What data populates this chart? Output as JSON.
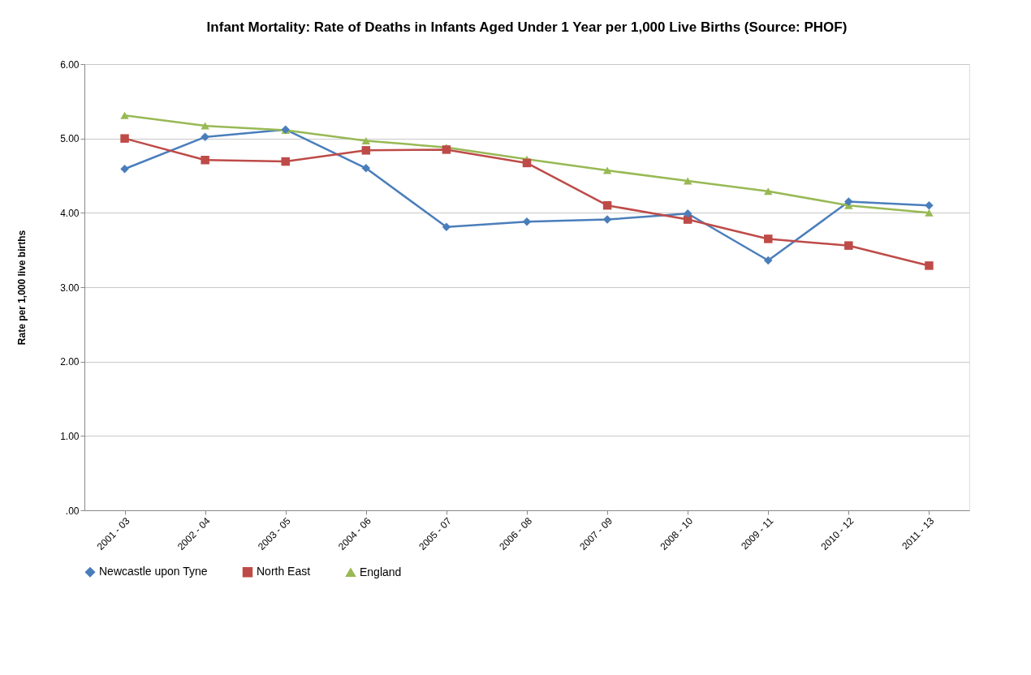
{
  "chart_data": {
    "type": "line",
    "title": "Infant Mortality: Rate of Deaths in Infants Aged Under 1 Year per 1,000 Live Births (Source: PHOF)",
    "ylabel": "Rate per 1,000 live births",
    "categories": [
      "2001 - 03",
      "2002 - 04",
      "2003 - 05",
      "2004 - 06",
      "2005 - 07",
      "2006 - 08",
      "2007 - 09",
      "2008 - 10",
      "2009 - 11",
      "2010 - 12",
      "2011 - 13"
    ],
    "series": [
      {
        "name": "Newcastle upon Tyne",
        "color": "#4a7ebb",
        "marker": "diamond",
        "values": [
          4.59,
          5.02,
          5.12,
          4.6,
          3.81,
          3.88,
          3.91,
          3.99,
          3.36,
          4.15,
          4.1
        ]
      },
      {
        "name": "North East",
        "color": "#be4b48",
        "marker": "square",
        "values": [
          5.0,
          4.71,
          4.69,
          4.84,
          4.85,
          4.67,
          4.1,
          3.91,
          3.65,
          3.56,
          3.29
        ]
      },
      {
        "name": "England",
        "color": "#98b954",
        "marker": "triangle",
        "values": [
          5.31,
          5.17,
          5.11,
          4.97,
          4.88,
          4.72,
          4.57,
          4.43,
          4.29,
          4.1,
          4.0
        ]
      }
    ],
    "ylim": [
      0,
      6
    ],
    "yticks": [
      {
        "value": 0,
        "label": ".00"
      },
      {
        "value": 1,
        "label": "1.00"
      },
      {
        "value": 2,
        "label": "2.00"
      },
      {
        "value": 3,
        "label": "3.00"
      },
      {
        "value": 4,
        "label": "4.00"
      },
      {
        "value": 5,
        "label": "5.00"
      },
      {
        "value": 6,
        "label": "6.00"
      }
    ],
    "grid": "y",
    "legend": "bottom",
    "line_style": "solid"
  }
}
